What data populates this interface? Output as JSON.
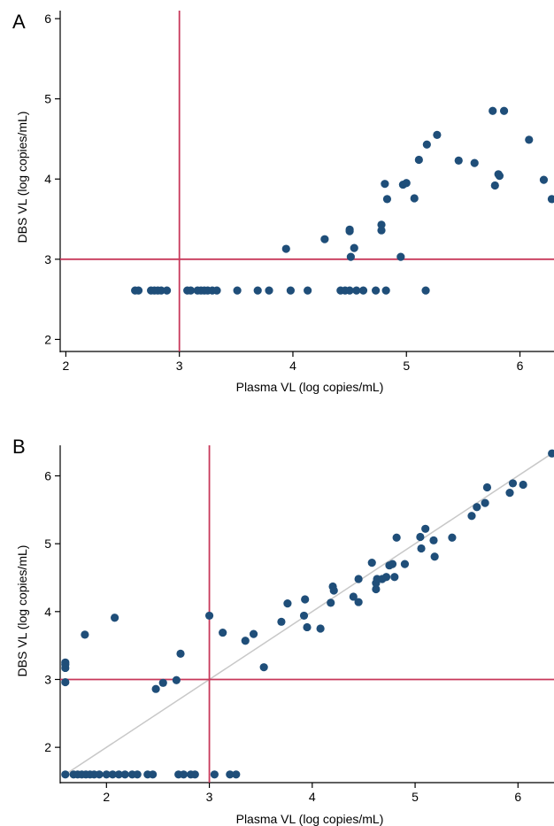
{
  "colors": {
    "point": "#1f4e79",
    "threshold": "#c8385a",
    "axis": "#000000",
    "identity_line": "#c8c8c8"
  },
  "chart_data": [
    {
      "panel": "A",
      "type": "scatter",
      "xlabel": "Plasma VL (log copies/mL)",
      "ylabel": "DBS VL (log copies/mL)",
      "xlim": [
        1.95,
        6.3
      ],
      "ylim": [
        1.85,
        6.1
      ],
      "xticks": [
        2,
        3,
        4,
        5,
        6
      ],
      "yticks": [
        2,
        3,
        4,
        5,
        6
      ],
      "grid": false,
      "reference_lines": {
        "x": 3,
        "y": 3
      },
      "identity_line": false,
      "points": [
        [
          2.61,
          2.61
        ],
        [
          2.64,
          2.61
        ],
        [
          2.75,
          2.61
        ],
        [
          2.78,
          2.61
        ],
        [
          2.81,
          2.61
        ],
        [
          2.84,
          2.61
        ],
        [
          2.89,
          2.61
        ],
        [
          3.07,
          2.61
        ],
        [
          3.1,
          2.61
        ],
        [
          3.16,
          2.61
        ],
        [
          3.19,
          2.61
        ],
        [
          3.22,
          2.61
        ],
        [
          3.25,
          2.61
        ],
        [
          3.29,
          2.61
        ],
        [
          3.33,
          2.61
        ],
        [
          3.51,
          2.61
        ],
        [
          3.69,
          2.61
        ],
        [
          3.79,
          2.61
        ],
        [
          3.98,
          2.61
        ],
        [
          4.13,
          2.61
        ],
        [
          4.42,
          2.61
        ],
        [
          4.46,
          2.61
        ],
        [
          4.5,
          2.61
        ],
        [
          4.56,
          2.61
        ],
        [
          4.62,
          2.61
        ],
        [
          4.73,
          2.61
        ],
        [
          4.82,
          2.61
        ],
        [
          5.17,
          2.61
        ],
        [
          3.94,
          3.13
        ],
        [
          4.28,
          3.25
        ],
        [
          4.5,
          3.35
        ],
        [
          4.5,
          3.37
        ],
        [
          4.51,
          3.03
        ],
        [
          4.54,
          3.14
        ],
        [
          4.78,
          3.36
        ],
        [
          4.78,
          3.43
        ],
        [
          4.81,
          3.94
        ],
        [
          4.83,
          3.75
        ],
        [
          4.95,
          3.03
        ],
        [
          4.97,
          3.93
        ],
        [
          5.0,
          3.95
        ],
        [
          5.07,
          3.76
        ],
        [
          5.11,
          4.24
        ],
        [
          5.18,
          4.43
        ],
        [
          5.27,
          4.55
        ],
        [
          5.46,
          4.23
        ],
        [
          5.6,
          4.2
        ],
        [
          5.76,
          4.85
        ],
        [
          5.78,
          3.92
        ],
        [
          5.81,
          4.06
        ],
        [
          5.82,
          4.04
        ],
        [
          5.86,
          4.85
        ],
        [
          6.08,
          4.49
        ],
        [
          6.21,
          3.99
        ],
        [
          6.28,
          3.75
        ]
      ]
    },
    {
      "panel": "B",
      "type": "scatter",
      "xlabel": "Plasma VL (log copies/mL)",
      "ylabel": "DBS VL (log copies/mL)",
      "xlim": [
        1.55,
        6.35
      ],
      "ylim": [
        1.48,
        6.45
      ],
      "xticks": [
        2,
        3,
        4,
        5,
        6
      ],
      "yticks": [
        2,
        3,
        4,
        5,
        6
      ],
      "grid": false,
      "reference_lines": {
        "x": 3,
        "y": 3
      },
      "identity_line": true,
      "points": [
        [
          1.6,
          1.6
        ],
        [
          1.68,
          1.6
        ],
        [
          1.72,
          1.6
        ],
        [
          1.76,
          1.6
        ],
        [
          1.8,
          1.6
        ],
        [
          1.84,
          1.6
        ],
        [
          1.88,
          1.6
        ],
        [
          1.93,
          1.6
        ],
        [
          2.0,
          1.6
        ],
        [
          2.06,
          1.6
        ],
        [
          2.12,
          1.6
        ],
        [
          2.18,
          1.6
        ],
        [
          2.25,
          1.6
        ],
        [
          2.3,
          1.6
        ],
        [
          2.4,
          1.6
        ],
        [
          2.45,
          1.6
        ],
        [
          2.7,
          1.6
        ],
        [
          2.75,
          1.6
        ],
        [
          2.82,
          1.6
        ],
        [
          2.86,
          1.6
        ],
        [
          3.05,
          1.6
        ],
        [
          3.2,
          1.6
        ],
        [
          3.26,
          1.6
        ],
        [
          1.6,
          2.96
        ],
        [
          1.6,
          3.17
        ],
        [
          1.6,
          3.22
        ],
        [
          1.6,
          3.25
        ],
        [
          1.79,
          3.66
        ],
        [
          2.08,
          3.91
        ],
        [
          2.48,
          2.86
        ],
        [
          2.55,
          2.95
        ],
        [
          2.68,
          2.99
        ],
        [
          2.72,
          3.38
        ],
        [
          3.0,
          3.94
        ],
        [
          3.13,
          3.69
        ],
        [
          3.35,
          3.57
        ],
        [
          3.43,
          3.67
        ],
        [
          3.53,
          3.18
        ],
        [
          3.7,
          3.85
        ],
        [
          3.76,
          4.12
        ],
        [
          3.92,
          3.94
        ],
        [
          3.93,
          4.18
        ],
        [
          3.95,
          3.77
        ],
        [
          4.08,
          3.75
        ],
        [
          4.18,
          4.13
        ],
        [
          4.2,
          4.37
        ],
        [
          4.21,
          4.31
        ],
        [
          4.4,
          4.22
        ],
        [
          4.45,
          4.48
        ],
        [
          4.45,
          4.14
        ],
        [
          4.58,
          4.72
        ],
        [
          4.62,
          4.33
        ],
        [
          4.62,
          4.42
        ],
        [
          4.63,
          4.48
        ],
        [
          4.68,
          4.48
        ],
        [
          4.72,
          4.51
        ],
        [
          4.75,
          4.68
        ],
        [
          4.78,
          4.7
        ],
        [
          4.8,
          4.51
        ],
        [
          4.82,
          5.09
        ],
        [
          4.9,
          4.7
        ],
        [
          5.05,
          5.1
        ],
        [
          5.06,
          4.93
        ],
        [
          5.1,
          5.22
        ],
        [
          5.18,
          5.05
        ],
        [
          5.19,
          4.81
        ],
        [
          5.36,
          5.09
        ],
        [
          5.55,
          5.41
        ],
        [
          5.6,
          5.54
        ],
        [
          5.68,
          5.6
        ],
        [
          5.7,
          5.83
        ],
        [
          5.92,
          5.75
        ],
        [
          5.95,
          5.89
        ],
        [
          6.05,
          5.87
        ],
        [
          6.33,
          6.33
        ]
      ]
    }
  ]
}
